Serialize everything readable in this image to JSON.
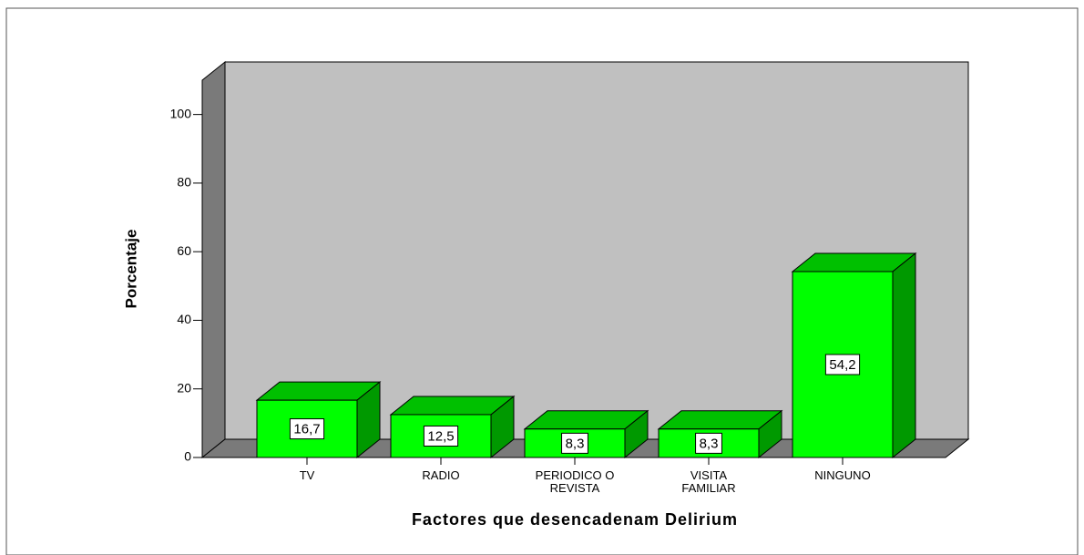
{
  "chart_data": {
    "type": "bar3d",
    "x_label": "Factores que desencadenam Delirium",
    "y_label": "Porcentaje",
    "categories": [
      "TV",
      "RADIO",
      "PERIODICO O REVISTA",
      "VISITA FAMILIAR",
      "NINGUNO"
    ],
    "values": [
      16.7,
      12.5,
      8.3,
      8.3,
      54.2
    ],
    "value_labels": [
      "16,7",
      "12,5",
      "8,3",
      "8,3",
      "54,2"
    ],
    "color": "#00ff00",
    "ylim": [
      0,
      110
    ],
    "yticks": [
      0,
      20,
      40,
      60,
      80,
      100
    ]
  }
}
